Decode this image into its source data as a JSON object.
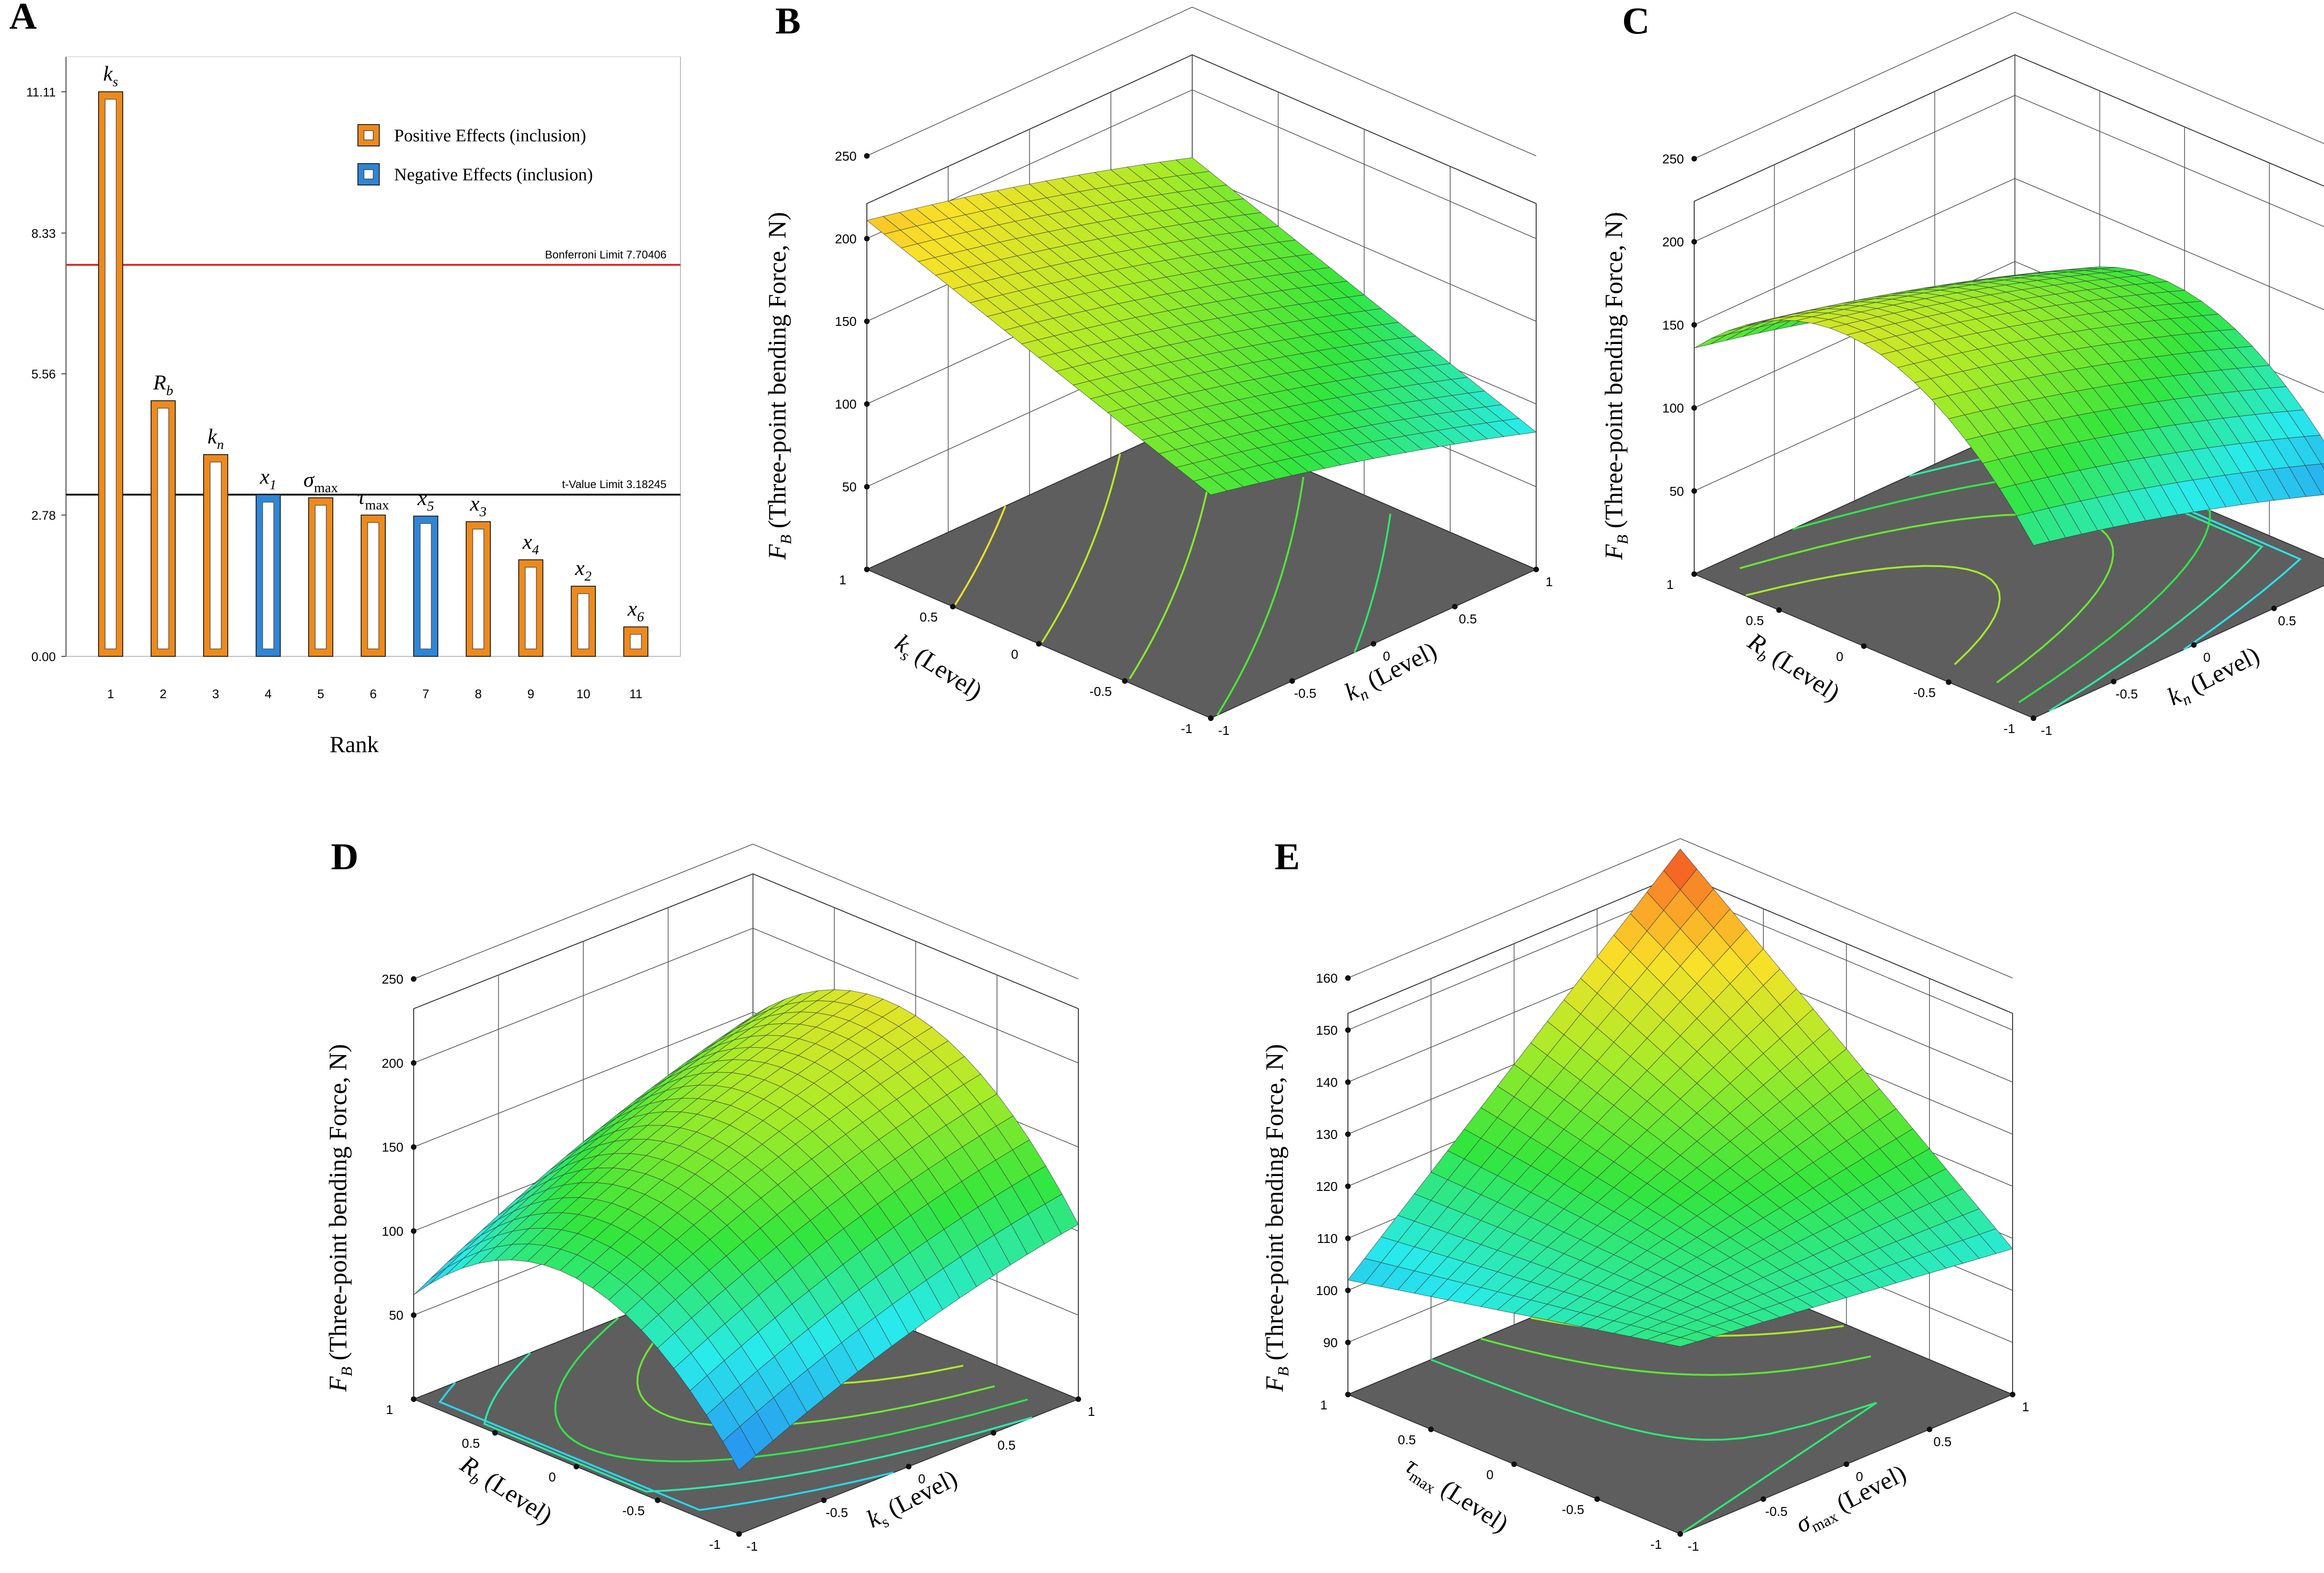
{
  "panels": {
    "A": {
      "letter": "A"
    },
    "B": {
      "letter": "B"
    },
    "C": {
      "letter": "C"
    },
    "D": {
      "letter": "D"
    },
    "E": {
      "letter": "E"
    }
  },
  "colors": {
    "positive": "#ee8a1c",
    "negative": "#2f86d6",
    "bonferroni_line": "#e02020",
    "tlimit_line": "#111111",
    "floor": "#5e5e5e"
  },
  "chart_data": [
    {
      "id": "A",
      "type": "bar",
      "title": "",
      "xlabel": "Rank",
      "ylabel": "",
      "ylim": [
        0,
        11.8
      ],
      "yticks": [
        "0.00",
        "2.78",
        "5.56",
        "8.33",
        "11.11"
      ],
      "ytick_values": [
        0,
        2.78,
        5.56,
        8.33,
        11.11
      ],
      "categories": [
        "1",
        "2",
        "3",
        "4",
        "5",
        "6",
        "7",
        "8",
        "9",
        "10",
        "11"
      ],
      "bars": [
        {
          "rank": "1",
          "base": "k",
          "sub": "s",
          "value": 11.11,
          "effect": "positive"
        },
        {
          "rank": "2",
          "base": "R",
          "sub": "b",
          "value": 5.03,
          "effect": "positive"
        },
        {
          "rank": "3",
          "base": "k",
          "sub": "n",
          "value": 3.97,
          "effect": "positive"
        },
        {
          "rank": "4",
          "base": "x",
          "sub": "1",
          "value": 3.18,
          "effect": "negative"
        },
        {
          "rank": "5",
          "base": "σ",
          "sub": "max",
          "value": 3.12,
          "effect": "positive"
        },
        {
          "rank": "6",
          "base": "τ",
          "sub": "max",
          "value": 2.78,
          "effect": "positive"
        },
        {
          "rank": "7",
          "base": "x",
          "sub": "5",
          "value": 2.76,
          "effect": "negative"
        },
        {
          "rank": "8",
          "base": "x",
          "sub": "3",
          "value": 2.65,
          "effect": "positive"
        },
        {
          "rank": "9",
          "base": "x",
          "sub": "4",
          "value": 1.9,
          "effect": "positive"
        },
        {
          "rank": "10",
          "base": "x",
          "sub": "2",
          "value": 1.38,
          "effect": "positive"
        },
        {
          "rank": "11",
          "base": "x",
          "sub": "6",
          "value": 0.58,
          "effect": "positive"
        }
      ],
      "legend": [
        {
          "label": "Positive Effects (inclusion)",
          "effect": "positive"
        },
        {
          "label": "Negative Effects (inclusion)",
          "effect": "negative"
        }
      ],
      "lines": [
        {
          "label": "Bonferroni Limit 7.70406",
          "value": 7.70406,
          "kind": "bonferroni"
        },
        {
          "label": "t-Value Limit 3.18245",
          "value": 3.18245,
          "kind": "tlimit"
        }
      ]
    },
    {
      "id": "B",
      "type": "surface",
      "zlabel_italic": "F",
      "zlabel_sub": "B",
      "zlabel_text": " (Three-point bending Force, N)",
      "zticks": [
        "50",
        "100",
        "150",
        "200",
        "250"
      ],
      "zlim": [
        0,
        250
      ],
      "left_axis": {
        "base": "k",
        "sub": "s",
        "sub_italic": true,
        "suffix": " (Level)"
      },
      "right_axis": {
        "base": "k",
        "sub": "n",
        "sub_italic": true,
        "suffix": " (Level)"
      },
      "axis_ticks": [
        "-1",
        "-0.5",
        "0",
        "0.5",
        "1"
      ],
      "model": {
        "c": 150,
        "a": 38,
        "b": -26,
        "aa": 0,
        "bb": -3,
        "ab": 0
      },
      "colorscale": "full"
    },
    {
      "id": "C",
      "type": "surface",
      "zlabel_italic": "F",
      "zlabel_sub": "B",
      "zlabel_text": " (Three-point bending Force, N)",
      "zticks": [
        "50",
        "100",
        "150",
        "200",
        "250"
      ],
      "zlim": [
        0,
        250
      ],
      "left_axis": {
        "base": "R",
        "sub": "b",
        "sub_italic": true,
        "suffix": " (Level)"
      },
      "right_axis": {
        "base": "k",
        "sub": "n",
        "sub_italic": true,
        "suffix": " (Level)"
      },
      "axis_ticks": [
        "-1",
        "-0.5",
        "0",
        "0.5",
        "1"
      ],
      "model": {
        "c": 158,
        "a": 16,
        "b": -28,
        "aa": -62,
        "bb": -4,
        "ab": 0
      },
      "colorscale": "full"
    },
    {
      "id": "D",
      "type": "surface",
      "zlabel_italic": "F",
      "zlabel_sub": "B",
      "zlabel_text": " (Three-point bending Force, N)",
      "zticks": [
        "50",
        "100",
        "150",
        "200",
        "250"
      ],
      "zlim": [
        0,
        250
      ],
      "left_axis": {
        "base": "R",
        "sub": "b",
        "sub_italic": true,
        "suffix": " (Level)"
      },
      "right_axis": {
        "base": "k",
        "sub": "s",
        "sub_italic": false,
        "suffix": " (Level)"
      },
      "axis_ticks": [
        "-1",
        "-0.5",
        "0",
        "0.5",
        "1"
      ],
      "model": {
        "c": 158,
        "a": 17,
        "b": 38,
        "aa": -62,
        "bb": -8,
        "ab": 5
      },
      "colorscale": "full"
    },
    {
      "id": "E",
      "type": "surface",
      "zlabel_italic": "F",
      "zlabel_sub": "B",
      "zlabel_text": " (Three-point bending Force, N)",
      "zticks": [
        "90",
        "100",
        "110",
        "120",
        "130",
        "140",
        "150",
        "160"
      ],
      "zlim": [
        80,
        160
      ],
      "left_axis": {
        "base": "τ",
        "sub": "max",
        "sub_italic": false,
        "suffix": " (Level)"
      },
      "right_axis": {
        "base": "σ",
        "sub": "max",
        "sub_italic": false,
        "suffix": " (Level)"
      },
      "axis_ticks": [
        "-1",
        "-0.5",
        "0",
        "0.5",
        "1"
      ],
      "model": {
        "c": 121,
        "a": 9,
        "b": 12,
        "aa": 0,
        "bb": 0,
        "ab": 16
      },
      "colorscale": "full"
    }
  ]
}
